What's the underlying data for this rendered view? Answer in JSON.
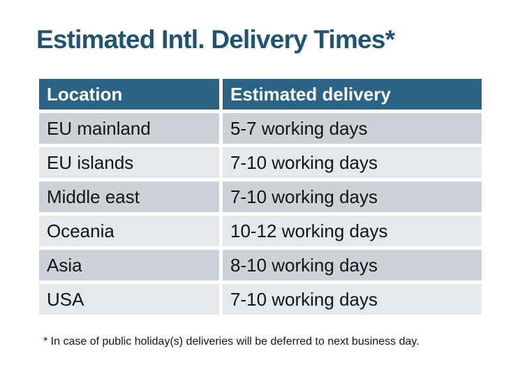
{
  "title": "Estimated Intl. Delivery Times*",
  "colors": {
    "title_text": "#20536F",
    "header_bg": "#2A6384",
    "header_text": "#FFFFFF",
    "row_dark_bg": "#CDD1D8",
    "row_light_bg": "#E5E9EC",
    "body_text": "#141414",
    "page_bg": "#FFFFFF"
  },
  "table": {
    "columns": [
      "Location",
      "Estimated delivery"
    ],
    "rows": [
      {
        "location": "EU mainland",
        "delivery": "5-7 working days"
      },
      {
        "location": "EU islands",
        "delivery": "7-10 working days"
      },
      {
        "location": "Middle east",
        "delivery": "7-10 working days"
      },
      {
        "location": "Oceania",
        "delivery": "10-12 working days"
      },
      {
        "location": "Asia",
        "delivery": "8-10 working days"
      },
      {
        "location": "USA",
        "delivery": "7-10 working days"
      }
    ]
  },
  "footnote": "* In case of public holiday(s) deliveries will be deferred to next business day."
}
